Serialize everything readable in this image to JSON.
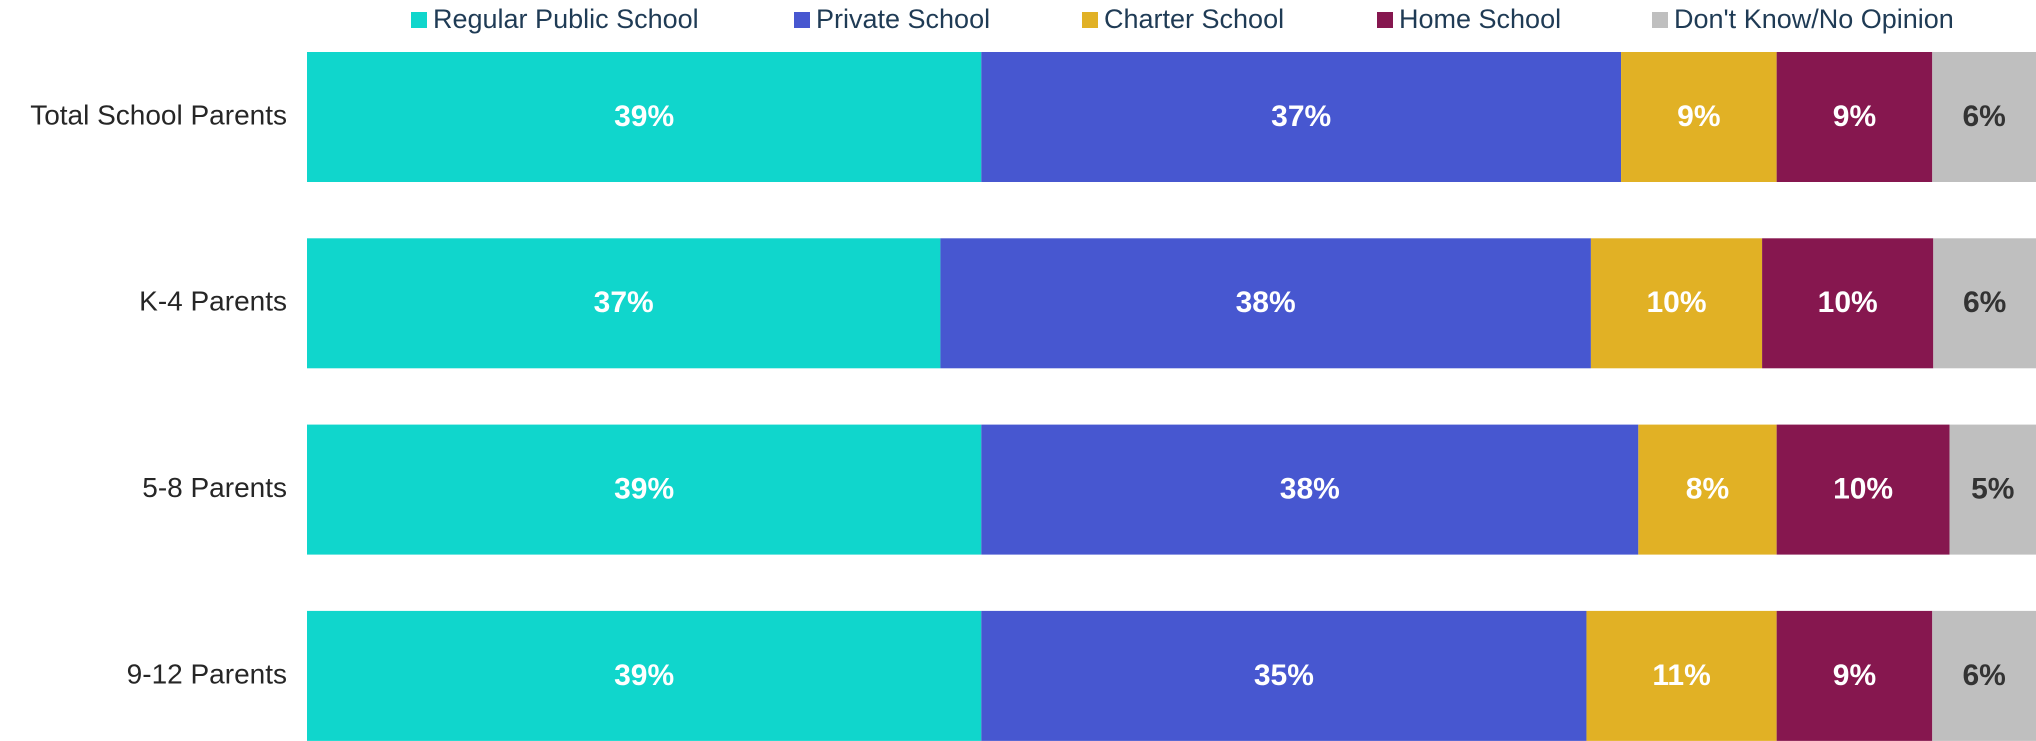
{
  "chart_data": {
    "type": "bar",
    "orientation": "horizontal",
    "stacking": "percent",
    "categories": [
      "Total School Parents",
      "K-4 Parents",
      "5-8 Parents",
      "9-12 Parents"
    ],
    "xlim": [
      0,
      100
    ],
    "legend": "top",
    "series": [
      {
        "name": "Regular Public School",
        "color": "#10d6cc",
        "label_color": "#ffffff",
        "values": [
          39,
          37,
          39,
          39
        ],
        "value_labels": [
          "39%",
          "37%",
          "39%",
          "39%"
        ]
      },
      {
        "name": "Private School",
        "color": "#4757d0",
        "label_color": "#ffffff",
        "values": [
          37,
          38,
          38,
          35
        ],
        "value_labels": [
          "37%",
          "38%",
          "38%",
          "35%"
        ]
      },
      {
        "name": "Charter School",
        "color": "#e1b125",
        "label_color": "#ffffff",
        "values": [
          9,
          10,
          8,
          11
        ],
        "value_labels": [
          "9%",
          "10%",
          "8%",
          "11%"
        ]
      },
      {
        "name": "Home School",
        "color": "#86174f",
        "label_color": "#ffffff",
        "values": [
          9,
          10,
          10,
          9
        ],
        "value_labels": [
          "9%",
          "10%",
          "10%",
          "9%"
        ]
      },
      {
        "name": "Don't Know/No Opinion",
        "color": "#bfbfbf",
        "label_color": "#333333",
        "values": [
          6,
          6,
          5,
          6
        ],
        "value_labels": [
          "6%",
          "6%",
          "5%",
          "6%"
        ]
      }
    ]
  }
}
